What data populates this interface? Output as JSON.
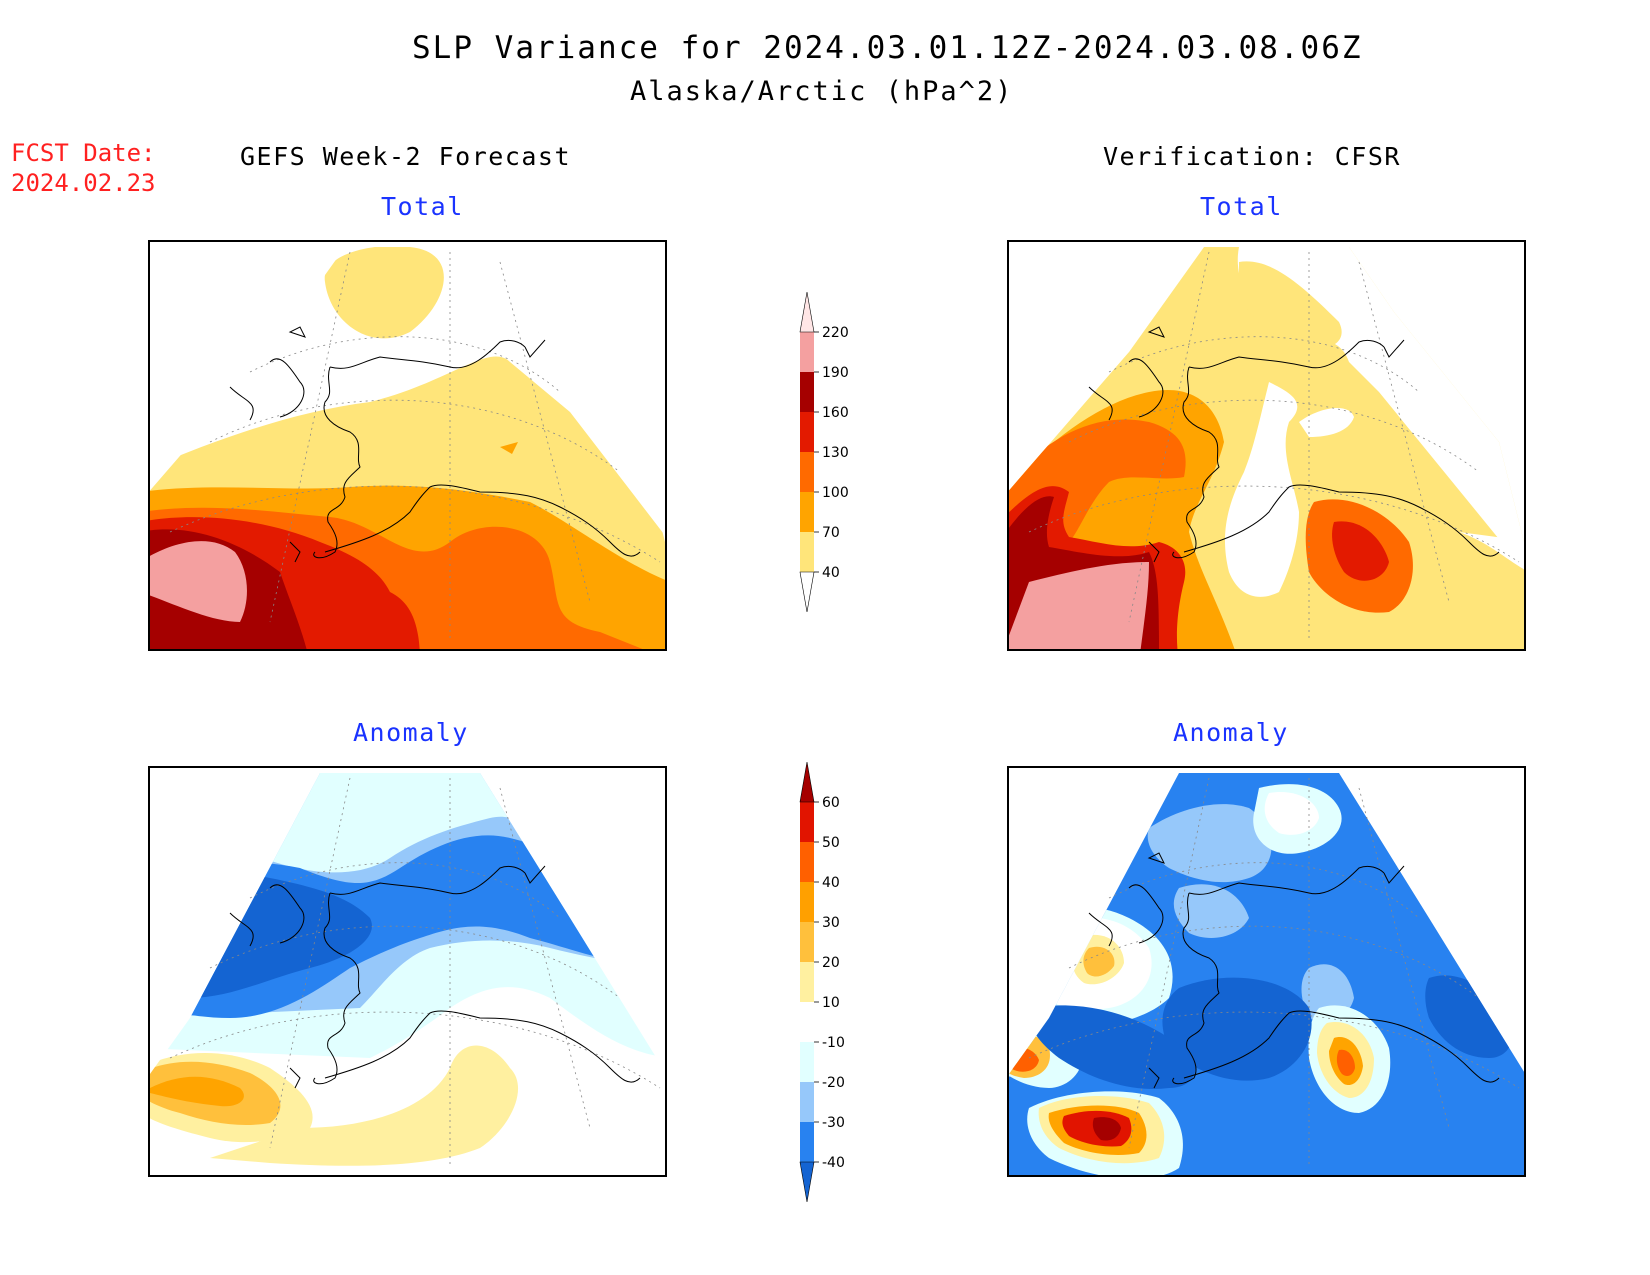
{
  "title": "SLP Variance for 2024.03.01.12Z-2024.03.08.06Z",
  "subtitle": "Alaska/Arctic (hPa^2)",
  "fcst_label": "FCST Date:",
  "fcst_date": "2024.02.23",
  "columns": {
    "left": "GEFS Week-2 Forecast",
    "right": "Verification: CFSR"
  },
  "panels": {
    "gefs_total": "Total",
    "cfsr_total": "Total",
    "gefs_anomaly": "Anomaly",
    "cfsr_anomaly": "Anomaly"
  },
  "colorbars": {
    "total": {
      "levels": [
        "40",
        "70",
        "100",
        "130",
        "160",
        "190",
        "220"
      ],
      "colors": [
        "#ffffff",
        "#ffe57a",
        "#ffa400",
        "#ff6a00",
        "#e31a00",
        "#a50000",
        "#f4a0a0",
        "#ffe6e6"
      ]
    },
    "anomaly": {
      "levels": [
        "-40",
        "-30",
        "-20",
        "-10",
        "10",
        "20",
        "30",
        "40",
        "50",
        "60"
      ],
      "colors": [
        "#1464d2",
        "#2882f0",
        "#96c8fa",
        "#e1ffff",
        "#ffffff",
        "#fff0a0",
        "#ffc03c",
        "#ffa000",
        "#ff6000",
        "#e11400",
        "#a50000"
      ]
    }
  }
}
